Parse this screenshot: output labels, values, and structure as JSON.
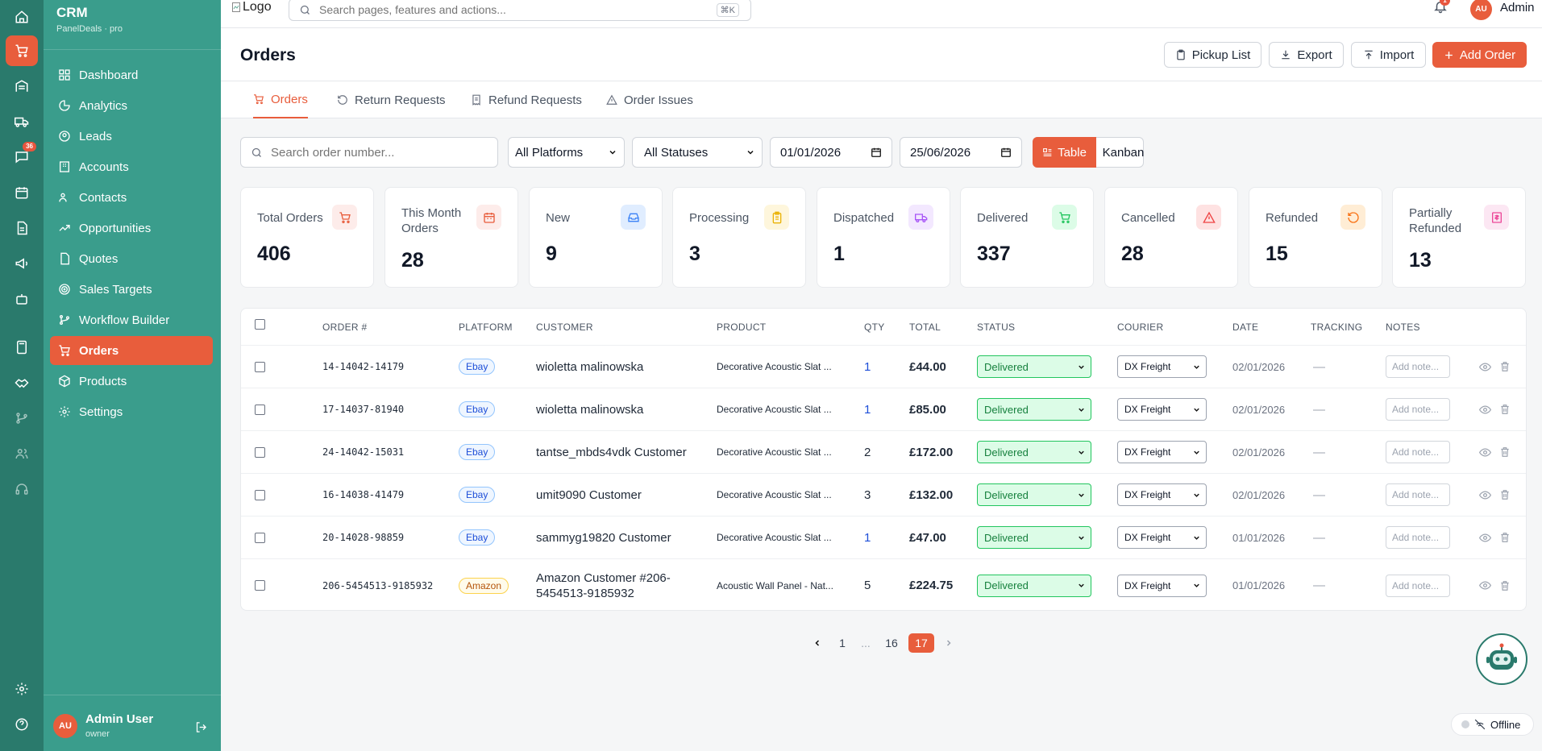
{
  "rail": {
    "chat_badge": "36"
  },
  "sidebar": {
    "brand_title": "CRM",
    "brand_sub": "PanelDeals · pro",
    "items": [
      {
        "label": "Dashboard"
      },
      {
        "label": "Analytics"
      },
      {
        "label": "Leads"
      },
      {
        "label": "Accounts"
      },
      {
        "label": "Contacts"
      },
      {
        "label": "Opportunities"
      },
      {
        "label": "Quotes"
      },
      {
        "label": "Sales Targets"
      },
      {
        "label": "Workflow Builder"
      },
      {
        "label": "Orders"
      },
      {
        "label": "Products"
      },
      {
        "label": "Settings"
      }
    ],
    "active_item": "Orders",
    "user": {
      "initials": "AU",
      "name": "Admin User",
      "role": "owner"
    }
  },
  "topbar": {
    "logo_alt": "Logo",
    "search_placeholder": "Search pages, features and actions...",
    "search_shortcut": "⌘K",
    "notification_count": "1",
    "user_initials": "AU",
    "user_name": "Admin"
  },
  "page": {
    "title": "Orders",
    "buttons": {
      "pickup": "Pickup List",
      "export": "Export",
      "import": "Import",
      "add": "Add Order"
    }
  },
  "tabs": [
    {
      "label": "Orders",
      "active": true
    },
    {
      "label": "Return Requests"
    },
    {
      "label": "Refund Requests"
    },
    {
      "label": "Order Issues"
    }
  ],
  "filters": {
    "search_placeholder": "Search order number...",
    "platform": "All Platforms",
    "status": "All Statuses",
    "date_from": "01/01/2026",
    "date_to": "25/06/2026",
    "view_table": "Table",
    "view_kanban": "Kanban"
  },
  "stats": [
    {
      "label": "Total Orders",
      "value": "406",
      "icon": "cart-icon",
      "color": "#e85d3c",
      "bg": "#fdecea"
    },
    {
      "label": "This Month Orders",
      "value": "28",
      "icon": "calendar-icon",
      "color": "#e85d3c",
      "bg": "#fdecea"
    },
    {
      "label": "New",
      "value": "9",
      "icon": "inbox-icon",
      "color": "#3b82f6",
      "bg": "#e0edff"
    },
    {
      "label": "Processing",
      "value": "3",
      "icon": "clipboard-icon",
      "color": "#eab308",
      "bg": "#fef6dc"
    },
    {
      "label": "Dispatched",
      "value": "1",
      "icon": "truck-icon",
      "color": "#a855f7",
      "bg": "#f3e8ff"
    },
    {
      "label": "Delivered",
      "value": "337",
      "icon": "cart-check-icon",
      "color": "#22c55e",
      "bg": "#dcfce7"
    },
    {
      "label": "Cancelled",
      "value": "28",
      "icon": "alert-icon",
      "color": "#ef4444",
      "bg": "#fee2e2"
    },
    {
      "label": "Refunded",
      "value": "15",
      "icon": "refresh-icon",
      "color": "#f97316",
      "bg": "#ffedd5"
    },
    {
      "label": "Partially Refunded",
      "value": "13",
      "icon": "receipt-icon",
      "color": "#ec4899",
      "bg": "#fce7f3"
    }
  ],
  "table": {
    "headers": [
      "ORDER #",
      "PLATFORM",
      "CUSTOMER",
      "PRODUCT",
      "QTY",
      "TOTAL",
      "STATUS",
      "COURIER",
      "DATE",
      "TRACKING",
      "NOTES"
    ],
    "note_placeholder": "Add note...",
    "rows": [
      {
        "order": "14-14042-14179",
        "platform": "Ebay",
        "customer": "wioletta malinowska",
        "product": "Decorative Acoustic Slat ...",
        "qty": "1",
        "total": "£44.00",
        "status": "Delivered",
        "courier": "DX Freight",
        "date": "02/01/2026",
        "tracking": "—"
      },
      {
        "order": "17-14037-81940",
        "platform": "Ebay",
        "customer": "wioletta malinowska",
        "product": "Decorative Acoustic Slat ...",
        "qty": "1",
        "total": "£85.00",
        "status": "Delivered",
        "courier": "DX Freight",
        "date": "02/01/2026",
        "tracking": "—"
      },
      {
        "order": "24-14042-15031",
        "platform": "Ebay",
        "customer": "tantse_mbds4vdk Customer",
        "product": "Decorative Acoustic Slat ...",
        "qty": "2",
        "total": "£172.00",
        "status": "Delivered",
        "courier": "DX Freight",
        "date": "02/01/2026",
        "tracking": "—"
      },
      {
        "order": "16-14038-41479",
        "platform": "Ebay",
        "customer": "umit9090 Customer",
        "product": "Decorative Acoustic Slat ...",
        "qty": "3",
        "total": "£132.00",
        "status": "Delivered",
        "courier": "DX Freight",
        "date": "02/01/2026",
        "tracking": "—"
      },
      {
        "order": "20-14028-98859",
        "platform": "Ebay",
        "customer": "sammyg19820 Customer",
        "product": "Decorative Acoustic Slat ...",
        "qty": "1",
        "total": "£47.00",
        "status": "Delivered",
        "courier": "DX Freight",
        "date": "01/01/2026",
        "tracking": "—"
      },
      {
        "order": "206-5454513-9185932",
        "platform": "Amazon",
        "customer": "Amazon Customer #206-5454513-9185932",
        "product": "Acoustic Wall Panel - Nat...",
        "qty": "5",
        "total": "£224.75",
        "status": "Delivered",
        "courier": "DX Freight",
        "date": "01/01/2026",
        "tracking": "—"
      }
    ]
  },
  "pagination": {
    "pages": [
      "1",
      "...",
      "16",
      "17"
    ],
    "current": "17"
  },
  "status_widget": {
    "label": "Offline"
  }
}
